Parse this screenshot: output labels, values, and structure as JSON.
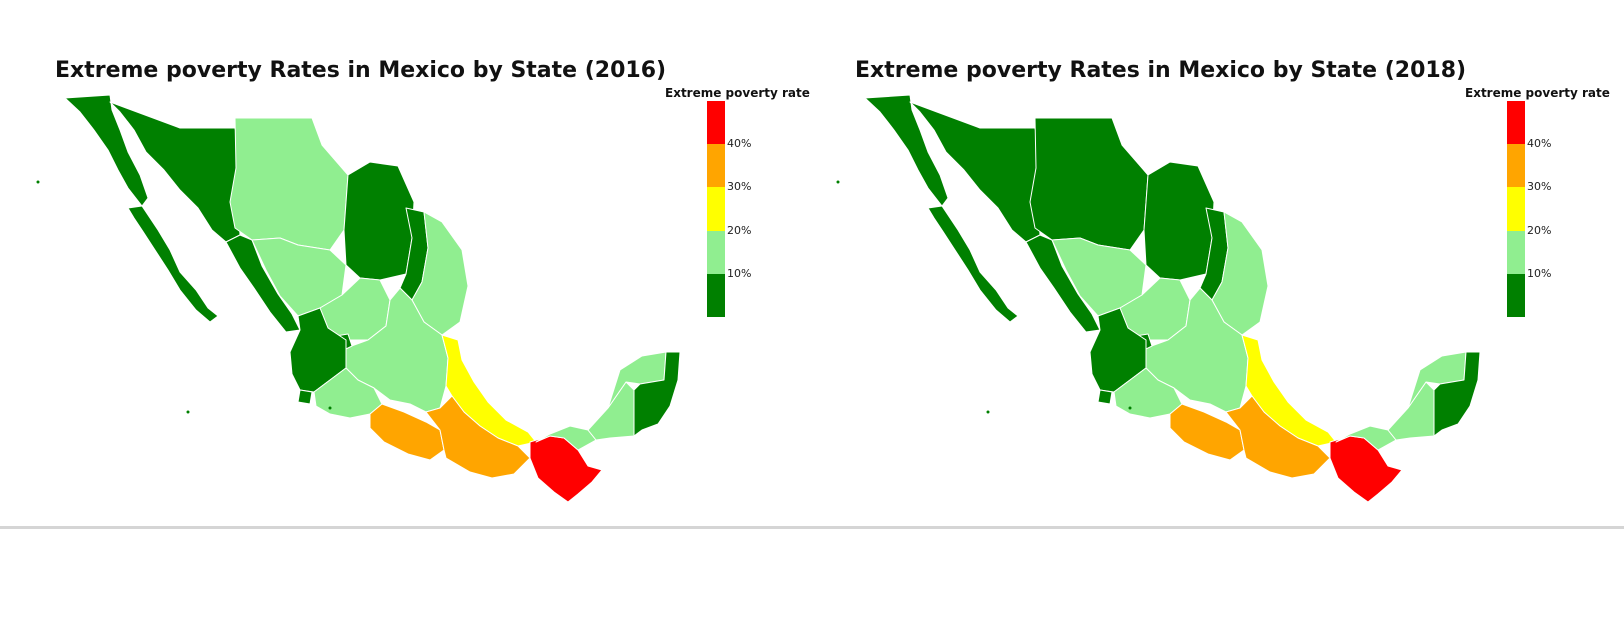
{
  "maps": [
    {
      "title": "Extreme poverty Rates in Mexico by State (2016)",
      "legend_title": "Extreme poverty rate",
      "state_colors": {
        "baja_california": "#008000",
        "baja_california_sur": "#008000",
        "sonora": "#008000",
        "chihuahua": "#90ee90",
        "coahuila": "#008000",
        "nuevo_leon": "#008000",
        "tamaulipas": "#90ee90",
        "sinaloa": "#008000",
        "durango": "#90ee90",
        "zacatecas": "#90ee90",
        "central": "#90ee90",
        "aguascalientes": "#008000",
        "jalisco": "#008000",
        "colima": "#008000",
        "michoacan": "#90ee90",
        "veracruz": "#ffff00",
        "guerrero": "#ffa500",
        "oaxaca": "#ffa500",
        "chiapas": "#ff0000",
        "tabasco": "#90ee90",
        "campeche": "#90ee90",
        "yucatan": "#90ee90",
        "quintana_roo": "#008000"
      }
    },
    {
      "title": "Extreme poverty Rates in Mexico by State (2018)",
      "legend_title": "Extreme poverty rate",
      "state_colors": {
        "baja_california": "#008000",
        "baja_california_sur": "#008000",
        "sonora": "#008000",
        "chihuahua": "#008000",
        "coahuila": "#008000",
        "nuevo_leon": "#008000",
        "tamaulipas": "#90ee90",
        "sinaloa": "#008000",
        "durango": "#90ee90",
        "zacatecas": "#90ee90",
        "central": "#90ee90",
        "aguascalientes": "#008000",
        "jalisco": "#008000",
        "colima": "#008000",
        "michoacan": "#90ee90",
        "veracruz": "#ffff00",
        "guerrero": "#ffa500",
        "oaxaca": "#ffa500",
        "chiapas": "#ff0000",
        "tabasco": "#90ee90",
        "campeche": "#90ee90",
        "yucatan": "#90ee90",
        "quintana_roo": "#008000"
      }
    }
  ],
  "legend": {
    "ticks": [
      "40%",
      "30%",
      "20%",
      "10%"
    ],
    "colors_top_to_bottom": [
      "#ff0000",
      "#ffa500",
      "#ffff00",
      "#90ee90",
      "#008000"
    ]
  }
}
